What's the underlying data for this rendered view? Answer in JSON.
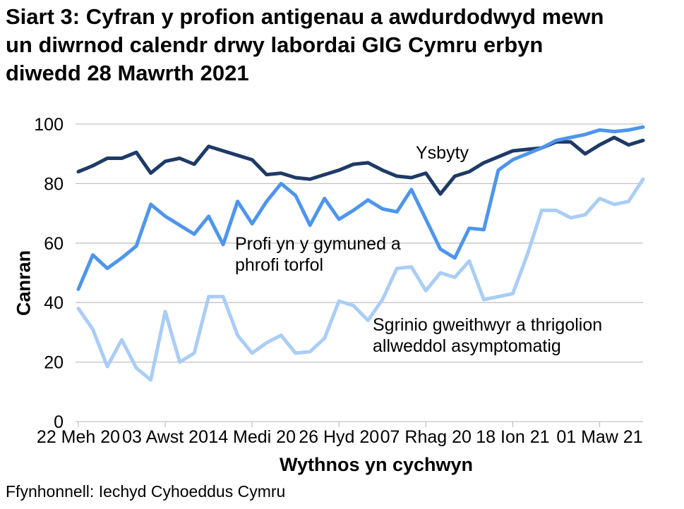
{
  "title_lines": [
    "Siart 3: Cyfran y profion antigenau a awdurdodwyd mewn",
    "un diwrnod calendr drwy labordai GIG Cymru erbyn",
    "diwedd 28 Mawrth 2021"
  ],
  "source": "Ffynhonnell: Iechyd Cyhoeddus Cymru",
  "colors": {
    "grid": "#c3c3c3",
    "axis": "#c3c3c3",
    "text": "#000000"
  },
  "chart_data": {
    "type": "line",
    "title": "Siart 3: Cyfran y profion antigenau a awdurdodwyd mewn un diwrnod calendr drwy labordai GIG Cymru erbyn diwedd 28 Mawrth 2021",
    "xlabel": "Wythnos yn cychwyn",
    "ylabel": "Canran",
    "ylim": [
      0,
      100
    ],
    "yticks": [
      0,
      20,
      40,
      60,
      80,
      100
    ],
    "grid": true,
    "n_points": 40,
    "x_tick_indices": [
      0,
      6,
      12,
      18,
      24,
      30,
      36
    ],
    "x_tick_labels": [
      "22 Meh 20",
      "03 Awst 20",
      "14 Medi 20",
      "26 Hyd 20",
      "07 Rhag 20",
      "18 Ion 21",
      "01 Maw 21"
    ],
    "legend_position": "inline-annotations",
    "series": [
      {
        "name": "Ysbyty",
        "color": "#1e3a66",
        "label_lines": [
          "Ysbyty"
        ],
        "values": [
          84,
          86,
          88.5,
          88.5,
          90.5,
          83.5,
          87.5,
          88.5,
          86.5,
          92.5,
          91,
          89.5,
          88,
          83,
          83.5,
          82,
          81.5,
          83,
          84.5,
          86.5,
          87,
          84.5,
          82.5,
          82,
          83.5,
          76.5,
          82.5,
          84,
          87,
          89,
          91,
          91.5,
          92,
          94,
          94,
          90,
          93,
          95.5,
          93,
          94.5
        ]
      },
      {
        "name": "Profi yn y gymuned a phrofi torfol",
        "color": "#4e95ec",
        "label_lines": [
          "Profi yn y gymuned a",
          "phrofi torfol"
        ],
        "values": [
          44.5,
          56,
          51.5,
          55,
          59,
          73,
          69,
          66,
          63,
          69,
          59.5,
          74,
          66.5,
          74,
          80,
          76,
          66,
          75,
          68,
          71,
          74.5,
          71.5,
          70.5,
          78,
          68,
          58,
          55,
          65,
          64.5,
          84.5,
          88,
          90,
          92,
          94.5,
          95.5,
          96.5,
          98,
          97.5,
          98,
          99
        ]
      },
      {
        "name": "Sgrinio gweithwyr a thrigolion allweddol asymptomatig",
        "color": "#aacdf6",
        "label_lines": [
          "Sgrinio gweithwyr a thrigolion",
          "allweddol asymptomatig"
        ],
        "values": [
          38,
          31,
          18.5,
          27.5,
          18,
          14,
          37,
          20,
          23,
          42,
          42,
          29,
          23,
          26.5,
          29,
          23,
          23.5,
          28,
          40.5,
          39,
          34,
          41,
          51.5,
          52,
          44,
          50,
          48.5,
          54,
          41,
          42,
          43,
          56,
          71,
          71,
          68.5,
          69.5,
          75,
          73,
          74,
          81.5
        ]
      }
    ]
  }
}
